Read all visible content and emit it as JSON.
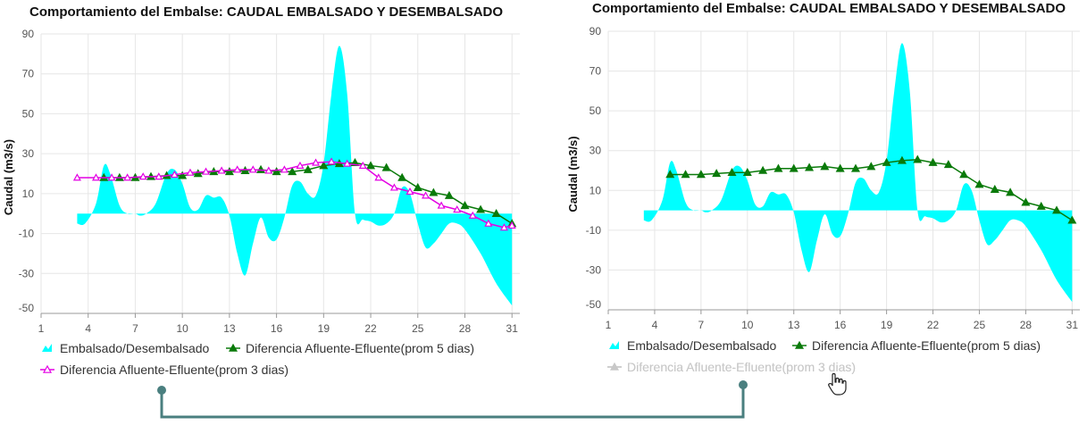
{
  "chart_data": [
    {
      "type": "area+line",
      "title": "Comportamiento del Embalse: CAUDAL EMBALSADO Y DESEMBALSADO",
      "ylabel": "Caudal (m3/s)",
      "xlabel": "",
      "ylim": [
        -50,
        90
      ],
      "xlim": [
        1,
        31.5
      ],
      "yticks": [
        90,
        70,
        50,
        30,
        10,
        -10,
        -30,
        -50
      ],
      "xticks": [
        1,
        4,
        7,
        10,
        13,
        16,
        19,
        22,
        25,
        28,
        31
      ],
      "grid": true,
      "legend_position": "bottom-left",
      "series": [
        {
          "name": "Embalsado/Desembalsado",
          "kind": "area",
          "color": "#00FFFF",
          "visible": true,
          "x": [
            3.3,
            3.8,
            4.5,
            5,
            5.4,
            6,
            6.5,
            7,
            7.3,
            7.7,
            8.3,
            9,
            9.5,
            10,
            10.5,
            11,
            11.5,
            12,
            12.5,
            13,
            13.5,
            14,
            14.5,
            15,
            15.5,
            16,
            16.5,
            17,
            17.5,
            18,
            18.5,
            19,
            19.5,
            20,
            20.5,
            21,
            21.5,
            22,
            22.5,
            23,
            23.5,
            24,
            24.5,
            25,
            25.5,
            26,
            26.5,
            27,
            27.5,
            28,
            29,
            30,
            31
          ],
          "y": [
            -5,
            -5,
            5,
            24,
            20,
            4,
            0,
            0,
            -1,
            0,
            5,
            20,
            22,
            15,
            3,
            2,
            9,
            8,
            8,
            -1,
            -20,
            -31,
            -15,
            -2,
            -12,
            -13,
            -2,
            14,
            16,
            10,
            9,
            25,
            60,
            84,
            60,
            0,
            -3,
            -4,
            -6,
            -5,
            0,
            13,
            10,
            -5,
            -17,
            -15,
            -10,
            -5,
            -5,
            -8,
            -20,
            -35,
            -46
          ]
        },
        {
          "name": "Diferencia Afluente-Efluente(prom 5 dias)",
          "kind": "line",
          "color": "#0A7A0A",
          "marker": "triangle",
          "visible": true,
          "x": [
            5,
            6,
            7,
            8,
            9,
            10,
            11,
            12,
            13,
            14,
            15,
            16,
            17,
            18,
            19,
            20,
            21,
            22,
            23,
            24,
            25,
            26,
            27,
            28,
            29,
            30,
            31
          ],
          "y": [
            18,
            18,
            18,
            18.5,
            19,
            19,
            20,
            21,
            21,
            21.5,
            22,
            21,
            21,
            22,
            24,
            25,
            25.5,
            24,
            23,
            18,
            13,
            10.5,
            9,
            4,
            2,
            0,
            -5
          ]
        },
        {
          "name": "Diferencia Afluente-Efluente(prom 3 dias)",
          "kind": "line",
          "color": "#E400E4",
          "marker": "triangle",
          "visible": true,
          "x": [
            3.3,
            4.5,
            5.5,
            6.5,
            7.5,
            8.5,
            9.5,
            10.5,
            11.5,
            12.5,
            13.5,
            14.5,
            15.5,
            16.5,
            17.5,
            18.5,
            19.5,
            20.5,
            21.5,
            22.5,
            23.5,
            24.5,
            25.5,
            26.5,
            27.5,
            28.5,
            29.5,
            30.5,
            31
          ],
          "y": [
            18,
            18,
            18,
            18,
            18.5,
            18.5,
            19.5,
            20.5,
            21,
            21.5,
            22,
            22,
            21.5,
            22,
            24,
            25.5,
            26,
            25,
            24,
            18,
            13,
            11,
            9,
            4,
            2,
            -1,
            -5,
            -7,
            -6
          ]
        }
      ]
    },
    {
      "type": "area+line",
      "title": "Comportamiento del Embalse: CAUDAL EMBALSADO Y DESEMBALSADO",
      "ylabel": "Caudal (m3/s)",
      "xlabel": "",
      "ylim": [
        -50,
        90
      ],
      "xlim": [
        1,
        31.5
      ],
      "yticks": [
        90,
        70,
        50,
        30,
        10,
        -10,
        -30,
        -50
      ],
      "xticks": [
        1,
        4,
        7,
        10,
        13,
        16,
        19,
        22,
        25,
        28,
        31
      ],
      "grid": true,
      "legend_position": "bottom-left",
      "series": [
        {
          "name": "Embalsado/Desembalsado",
          "kind": "area",
          "color": "#00FFFF",
          "visible": true,
          "x": [
            3.3,
            3.8,
            4.5,
            5,
            5.4,
            6,
            6.5,
            7,
            7.3,
            7.7,
            8.3,
            9,
            9.5,
            10,
            10.5,
            11,
            11.5,
            12,
            12.5,
            13,
            13.5,
            14,
            14.5,
            15,
            15.5,
            16,
            16.5,
            17,
            17.5,
            18,
            18.5,
            19,
            19.5,
            20,
            20.5,
            21,
            21.5,
            22,
            22.5,
            23,
            23.5,
            24,
            24.5,
            25,
            25.5,
            26,
            26.5,
            27,
            27.5,
            28,
            29,
            30,
            31
          ],
          "y": [
            -5,
            -5,
            5,
            24,
            20,
            4,
            0,
            0,
            -1,
            0,
            5,
            20,
            22,
            15,
            3,
            2,
            9,
            8,
            8,
            -1,
            -20,
            -31,
            -15,
            -2,
            -12,
            -13,
            -2,
            14,
            16,
            10,
            9,
            25,
            60,
            84,
            60,
            0,
            -3,
            -4,
            -6,
            -5,
            0,
            13,
            10,
            -5,
            -17,
            -15,
            -10,
            -5,
            -5,
            -8,
            -20,
            -35,
            -46
          ]
        },
        {
          "name": "Diferencia Afluente-Efluente(prom 5 dias)",
          "kind": "line",
          "color": "#0A7A0A",
          "marker": "triangle",
          "visible": true,
          "x": [
            5,
            6,
            7,
            8,
            9,
            10,
            11,
            12,
            13,
            14,
            15,
            16,
            17,
            18,
            19,
            20,
            21,
            22,
            23,
            24,
            25,
            26,
            27,
            28,
            29,
            30,
            31
          ],
          "y": [
            18,
            18,
            18,
            18.5,
            19,
            19,
            20,
            21,
            21,
            21.5,
            22,
            21,
            21,
            22,
            24,
            25,
            25.5,
            24,
            23,
            18,
            13,
            10.5,
            9,
            4,
            2,
            0,
            -5
          ]
        },
        {
          "name": "Diferencia Afluente-Efluente(prom 3 dias)",
          "kind": "line",
          "color": "#E400E4",
          "marker": "triangle",
          "visible": false,
          "x": [],
          "y": []
        }
      ]
    }
  ],
  "annotation": {
    "connector_color": "#4A7F7F"
  },
  "colors": {
    "grid": "#e6e6e6",
    "axis": "#999999",
    "legend_disabled": "#c8c8c8"
  }
}
